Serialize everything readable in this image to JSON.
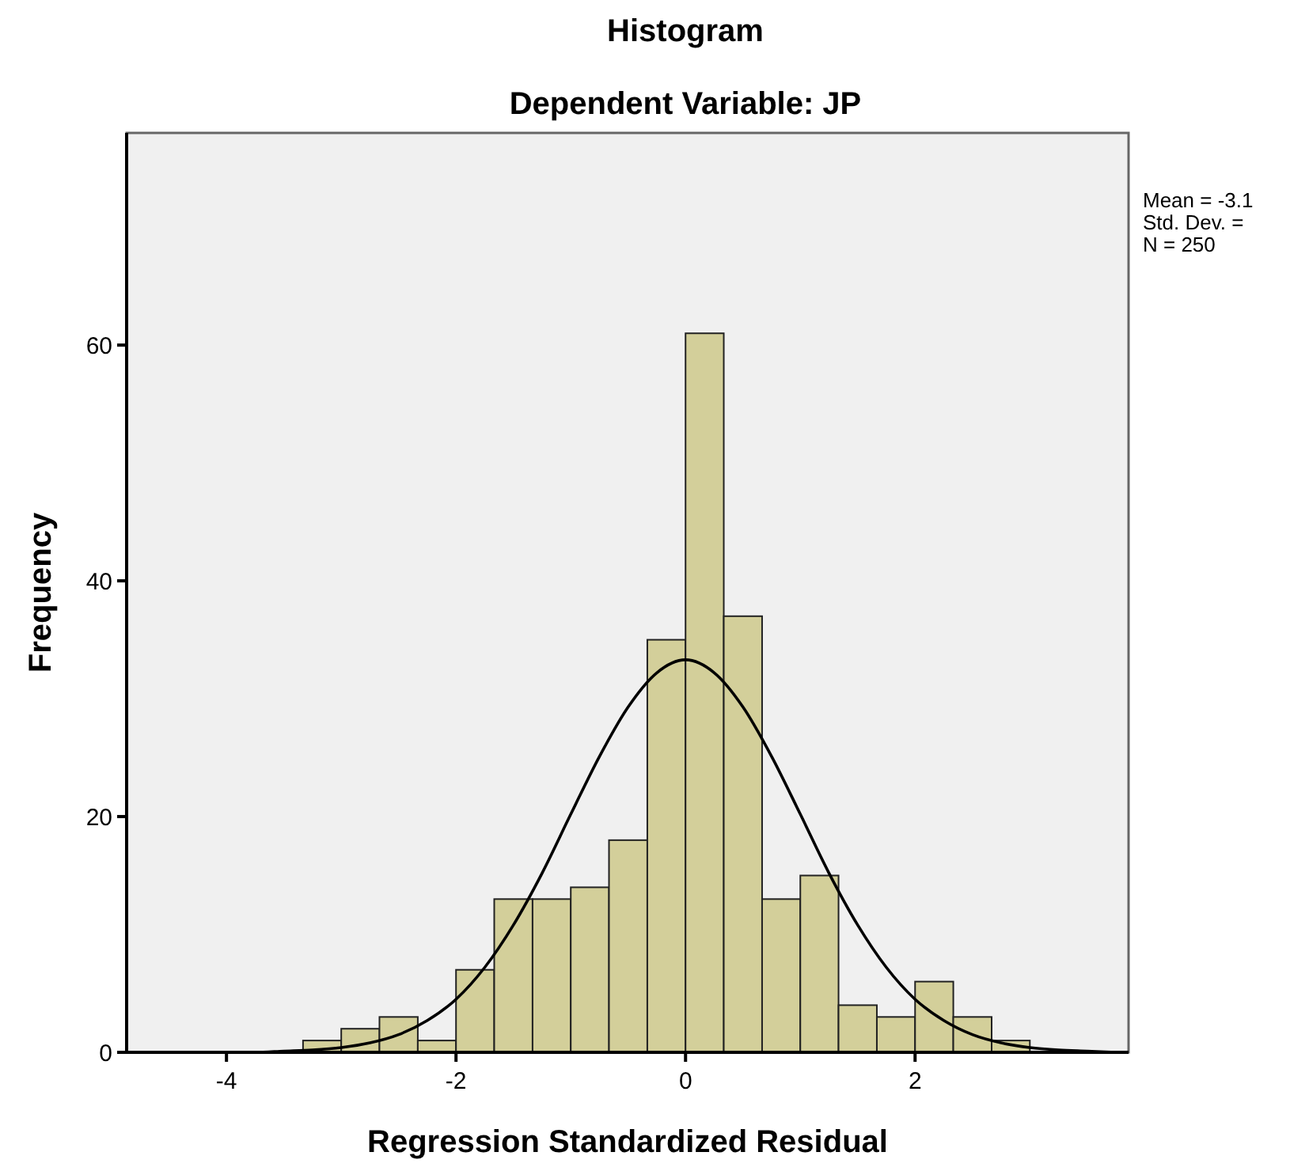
{
  "chart_data": {
    "type": "histogram",
    "title": "Histogram",
    "subtitle": "Dependent Variable: JP",
    "xlabel": "Regression Standardized Residual",
    "ylabel": "Frequency",
    "bins": [
      -3.333,
      -3,
      -2.667,
      -2.333,
      -2,
      -1.667,
      -1.333,
      -1,
      -0.667,
      -0.333,
      0,
      0.333,
      0.667,
      1,
      1.333,
      1.667,
      2,
      2.333,
      2.667,
      3
    ],
    "values": [
      1,
      2,
      3,
      1,
      7,
      13,
      13,
      14,
      18,
      35,
      61,
      37,
      13,
      15,
      4,
      3,
      6,
      3,
      1
    ],
    "color": "#d3cf9a",
    "series": [
      {
        "type": "line",
        "color": "#000000",
        "x": [
          -4.75,
          -4.5,
          -4.25,
          -4,
          -3.75,
          -3.5,
          -3.25,
          -3,
          -2.75,
          -2.5,
          -2.25,
          -2,
          -1.75,
          -1.5,
          -1.25,
          -1,
          -0.75,
          -0.5,
          -0.25,
          0,
          0.25,
          0.5,
          0.75,
          1,
          1.25,
          1.5,
          1.75,
          2,
          2.25,
          2.5,
          2.75,
          3,
          3.25,
          3.5,
          3.75
        ],
        "values": [
          0,
          0,
          0,
          0,
          0,
          0.1,
          0.2,
          0.4,
          0.8,
          1.5,
          2.7,
          4.5,
          7.2,
          10.8,
          15.2,
          20.2,
          25.1,
          29.3,
          32.2,
          33.3,
          32.2,
          29.3,
          25.1,
          20.2,
          15.2,
          10.8,
          7.2,
          4.5,
          2.7,
          1.5,
          0.8,
          0.4,
          0.2,
          0.1,
          0
        ]
      }
    ],
    "xlim": [
      -4.87,
      3.86
    ],
    "ylim": [
      0,
      78
    ],
    "xticks": [
      -4,
      -2,
      0,
      2
    ],
    "yticks": [
      0,
      20,
      40,
      60
    ],
    "grid": false,
    "marker": "none",
    "annotations": [
      "Mean = -3.1",
      "Std. Dev. =",
      "N = 250"
    ]
  }
}
